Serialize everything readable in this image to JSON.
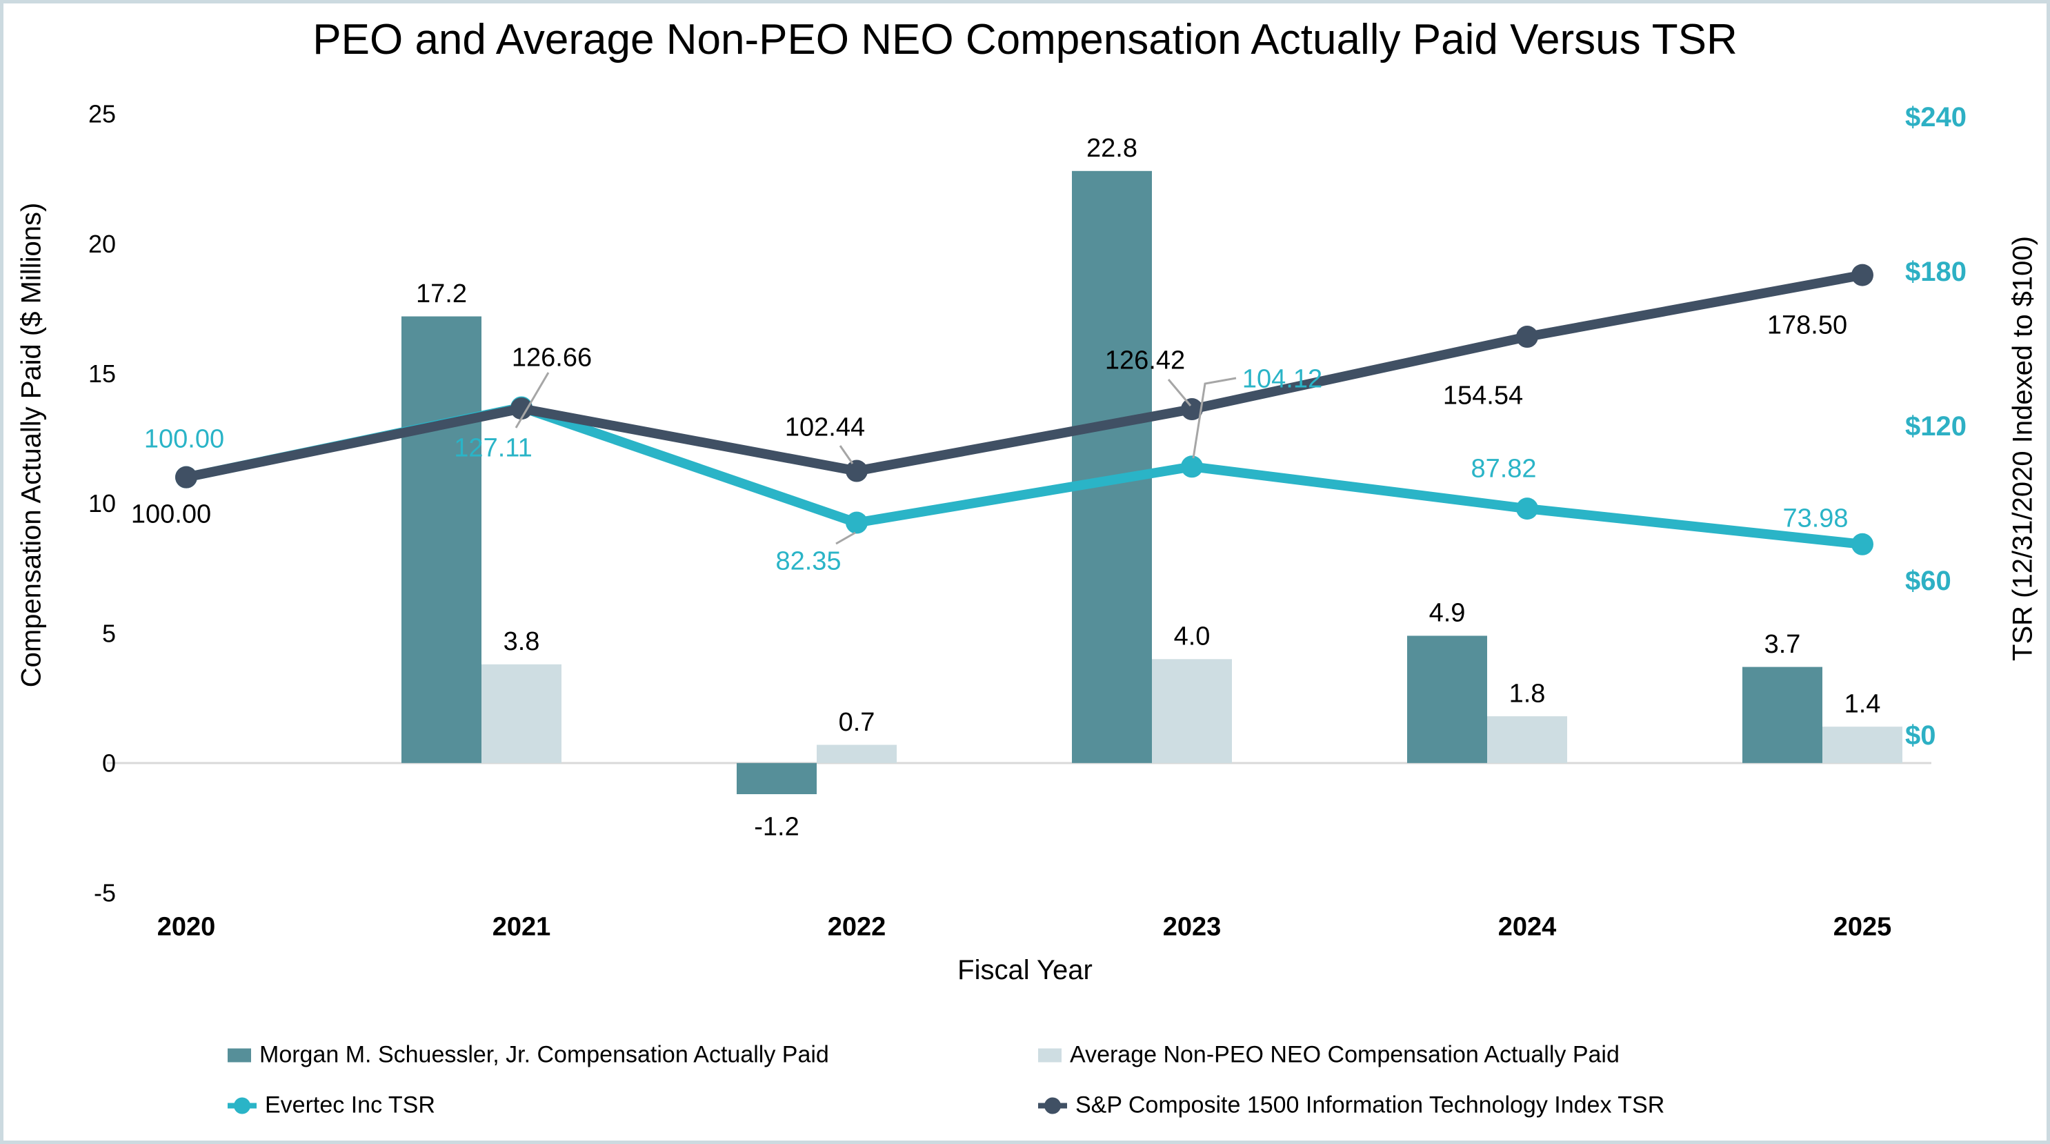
{
  "frame": {
    "border_color": "#ccdae0",
    "background": "#ffffff"
  },
  "chart_data": {
    "type": "combo-bar-line",
    "title": "PEO and Average Non-PEO NEO Compensation Actually Paid Versus TSR",
    "x": {
      "label": "Fiscal Year",
      "categories": [
        "2020",
        "2021",
        "2022",
        "2023",
        "2024",
        "2025"
      ]
    },
    "y_left": {
      "label": "Compensation Actually Paid ($ Millions)",
      "min": -5,
      "max": 25,
      "ticks": [
        "25",
        "20",
        "15",
        "10",
        "5",
        "0",
        "-5"
      ],
      "tick_values": [
        25,
        20,
        15,
        10,
        5,
        0,
        -5
      ],
      "grid": "zero-line-only"
    },
    "y_right": {
      "label": "TSR (12/31/2020 Indexed to $100)",
      "min": 0,
      "max": 240,
      "ticks": [
        "$240",
        "$180",
        "$120",
        "$60",
        "$0"
      ],
      "tick_values": [
        240,
        180,
        120,
        60,
        0
      ],
      "tick_color": "#2db0c4"
    },
    "bar_series": [
      {
        "name": "Morgan M. Schuessler, Jr. Compensation Actually Paid",
        "color": "#568f99",
        "values": [
          null,
          17.2,
          -1.2,
          22.8,
          4.9,
          3.7
        ],
        "labels": [
          "",
          "17.2",
          "-1.2",
          "22.8",
          "4.9",
          "3.7"
        ]
      },
      {
        "name": "Average Non-PEO NEO Compensation Actually Paid",
        "color": "#cedde2",
        "values": [
          null,
          3.8,
          0.7,
          4.0,
          1.8,
          1.4
        ],
        "labels": [
          "",
          "3.8",
          "0.7",
          "4.0",
          "1.8",
          "1.4"
        ]
      }
    ],
    "line_series": [
      {
        "name": "Evertec Inc TSR",
        "color": "#2ab4c7",
        "axis": "right",
        "values": [
          100.0,
          127.11,
          82.35,
          104.12,
          87.82,
          73.98
        ],
        "labels": [
          "100.00",
          "127.11",
          "82.35",
          "104.12",
          "87.82",
          "73.98"
        ],
        "label_color": "#2ab4c7"
      },
      {
        "name": "S&P Composite 1500 Information Technology Index TSR",
        "color": "#405064",
        "axis": "right",
        "values": [
          100.0,
          126.66,
          102.44,
          126.42,
          154.54,
          178.5
        ],
        "labels": [
          "100.00",
          "126.66",
          "102.44",
          "126.42",
          "154.54",
          "178.50"
        ],
        "label_color": "#000000"
      }
    ],
    "leader_line_color": "#a6a6a6",
    "zero_line_color": "#d9d9d9",
    "legend_position": "bottom"
  }
}
